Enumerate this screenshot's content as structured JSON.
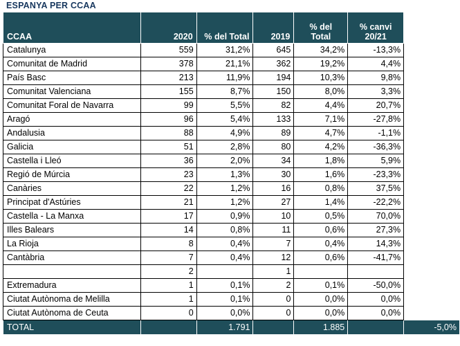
{
  "title": "ESPANYA PER CCAA",
  "headers": {
    "ccaa": "CCAA",
    "y2020": "2020",
    "pct_total_2020": "% del Total",
    "y2019": "2019",
    "pct_total_2019_line1": "% del",
    "pct_total_2019_line2": "Total",
    "pct_change_line1": "% canvi",
    "pct_change_line2": "20/21"
  },
  "rows": [
    {
      "name": "Catalunya",
      "v2020": "559",
      "p2020": "31,2%",
      "v2019": "645",
      "p2019": "34,2%",
      "change": "-13,3%"
    },
    {
      "name": "Comunitat de Madrid",
      "v2020": "378",
      "p2020": "21,1%",
      "v2019": "362",
      "p2019": "19,2%",
      "change": "4,4%"
    },
    {
      "name": "País Basc",
      "v2020": "213",
      "p2020": "11,9%",
      "v2019": "194",
      "p2019": "10,3%",
      "change": "9,8%"
    },
    {
      "name": "Comunitat Valenciana",
      "v2020": "155",
      "p2020": "8,7%",
      "v2019": "150",
      "p2019": "8,0%",
      "change": "3,3%"
    },
    {
      "name": "Comunitat Foral de Navarra",
      "v2020": "99",
      "p2020": "5,5%",
      "v2019": "82",
      "p2019": "4,4%",
      "change": "20,7%"
    },
    {
      "name": "Aragó",
      "v2020": "96",
      "p2020": "5,4%",
      "v2019": "133",
      "p2019": "7,1%",
      "change": "-27,8%"
    },
    {
      "name": "Andalusia",
      "v2020": "88",
      "p2020": "4,9%",
      "v2019": "89",
      "p2019": "4,7%",
      "change": "-1,1%"
    },
    {
      "name": "Galicia",
      "v2020": "51",
      "p2020": "2,8%",
      "v2019": "80",
      "p2019": "4,2%",
      "change": "-36,3%"
    },
    {
      "name": "Castella i Lleó",
      "v2020": "36",
      "p2020": "2,0%",
      "v2019": "34",
      "p2019": "1,8%",
      "change": "5,9%"
    },
    {
      "name": "Regió de Múrcia",
      "v2020": "23",
      "p2020": "1,3%",
      "v2019": "30",
      "p2019": "1,6%",
      "change": "-23,3%"
    },
    {
      "name": "Canàries",
      "v2020": "22",
      "p2020": "1,2%",
      "v2019": "16",
      "p2019": "0,8%",
      "change": "37,5%"
    },
    {
      "name": "Principat d'Astúries",
      "v2020": "21",
      "p2020": "1,2%",
      "v2019": "27",
      "p2019": "1,4%",
      "change": "-22,2%"
    },
    {
      "name": "Castella - La Manxa",
      "v2020": "17",
      "p2020": "0,9%",
      "v2019": "10",
      "p2019": "0,5%",
      "change": "70,0%"
    },
    {
      "name": "Illes Balears",
      "v2020": "14",
      "p2020": "0,8%",
      "v2019": "11",
      "p2019": "0,6%",
      "change": "27,3%"
    },
    {
      "name": "La Rioja",
      "v2020": "8",
      "p2020": "0,4%",
      "v2019": "7",
      "p2019": "0,4%",
      "change": "14,3%"
    },
    {
      "name": "Cantàbria",
      "v2020": "7",
      "p2020": "0,4%",
      "v2019": "12",
      "p2019": "0,6%",
      "change": "-41,7%"
    },
    {
      "name": "",
      "v2020": "2",
      "p2020": "",
      "v2019": "1",
      "p2019": "",
      "change": ""
    },
    {
      "name": "Extremadura",
      "v2020": "1",
      "p2020": "0,1%",
      "v2019": "2",
      "p2019": "0,1%",
      "change": "-50,0%"
    },
    {
      "name": "Ciutat Autònoma de Melilla",
      "v2020": "1",
      "p2020": "0,1%",
      "v2019": "0",
      "p2019": "0,0%",
      "change": "0,0%"
    },
    {
      "name": "Ciutat Autònoma de Ceuta",
      "v2020": "0",
      "p2020": "0,0%",
      "v2019": "0",
      "p2019": "0,0%",
      "change": "0,0%"
    }
  ],
  "total": {
    "label": "TOTAL",
    "v2020": "1.791",
    "v2019": "1.885",
    "change": "-5,0%"
  },
  "colors": {
    "header_bg": "#1f4e5a",
    "header_text": "#ffffff",
    "title_text": "#17375e"
  }
}
